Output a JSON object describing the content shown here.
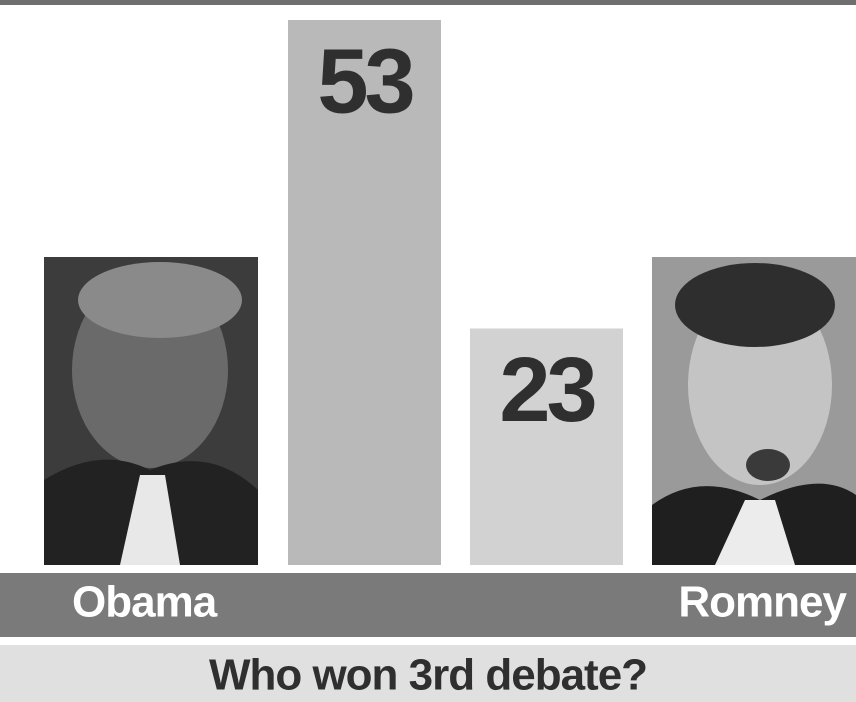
{
  "chart_data": {
    "type": "bar",
    "title": "Who won 3rd debate?",
    "categories": [
      "Obama",
      "Romney"
    ],
    "values": [
      53,
      23
    ],
    "colors": [
      "#b9b9b9",
      "#d2d2d2"
    ]
  }
}
